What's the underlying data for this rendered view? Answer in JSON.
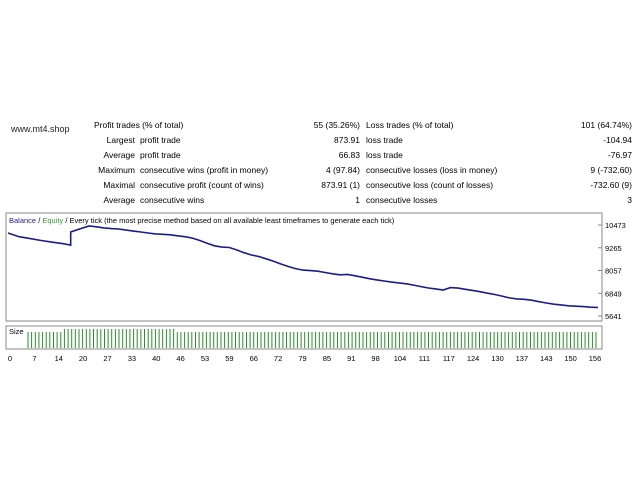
{
  "watermark": "www.mt4.shop",
  "stats": [
    {
      "l1": "",
      "l2": "Profit trades (% of total)",
      "v1": "55 (35.26%)",
      "l3": "Loss trades (% of total)",
      "v2": "101 (64.74%)"
    },
    {
      "l1": "Largest",
      "l2": "profit trade",
      "v1": "873.91",
      "l3": "loss trade",
      "v2": "-104.94"
    },
    {
      "l1": "Average",
      "l2": "profit trade",
      "v1": "66.83",
      "l3": "loss trade",
      "v2": "-76.97"
    },
    {
      "l1": "Maximum",
      "l2": "consecutive wins (profit in money)",
      "v1": "4 (97.84)",
      "l3": "consecutive losses (loss in money)",
      "v2": "9 (-732.60)"
    },
    {
      "l1": "Maximal",
      "l2": "consecutive profit (count of wins)",
      "v1": "873.91 (1)",
      "l3": "consecutive loss (count of losses)",
      "v2": "-732.60 (9)"
    },
    {
      "l1": "Average",
      "l2": "consecutive wins",
      "v1": "1",
      "l3": "consecutive losses",
      "v2": "3"
    }
  ],
  "chart_data": {
    "type": "line",
    "legend": {
      "balance": "Balance",
      "sep": " / ",
      "equity": "Equity",
      "rest": " / Every tick (the most precise method based on all available least timeframes to generate each tick)"
    },
    "size_label": "Size",
    "colors": {
      "balance": "#1c1c8c",
      "equity": "#3a9a3a",
      "size": "#2e8b2e"
    },
    "ylim": [
      5641,
      10473
    ],
    "yticks": [
      "10473",
      "9265",
      "8057",
      "6849",
      "5641"
    ],
    "xlim": [
      0,
      160
    ],
    "xticks": [
      "0",
      "7",
      "14",
      "20",
      "27",
      "33",
      "40",
      "46",
      "53",
      "59",
      "66",
      "72",
      "79",
      "85",
      "91",
      "98",
      "104",
      "111",
      "117",
      "124",
      "130",
      "137",
      "143",
      "150",
      "156"
    ],
    "series": [
      {
        "values_xy": [
          [
            0,
            10050
          ],
          [
            3,
            9850
          ],
          [
            6,
            9750
          ],
          [
            9,
            9650
          ],
          [
            12,
            9560
          ],
          [
            15,
            9480
          ],
          [
            17,
            9400
          ],
          [
            17,
            10100
          ],
          [
            20,
            10300
          ],
          [
            22,
            10420
          ],
          [
            24,
            10380
          ],
          [
            26,
            10320
          ],
          [
            28,
            10280
          ],
          [
            30,
            10260
          ],
          [
            32,
            10200
          ],
          [
            34,
            10150
          ],
          [
            36,
            10100
          ],
          [
            38,
            10050
          ],
          [
            40,
            10000
          ],
          [
            42,
            9980
          ],
          [
            44,
            9950
          ],
          [
            46,
            9900
          ],
          [
            48,
            9850
          ],
          [
            50,
            9780
          ],
          [
            52,
            9650
          ],
          [
            54,
            9500
          ],
          [
            56,
            9370
          ],
          [
            58,
            9300
          ],
          [
            60,
            9280
          ],
          [
            62,
            9150
          ],
          [
            64,
            9000
          ],
          [
            66,
            8880
          ],
          [
            68,
            8800
          ],
          [
            70,
            8680
          ],
          [
            72,
            8550
          ],
          [
            74,
            8400
          ],
          [
            76,
            8270
          ],
          [
            78,
            8160
          ],
          [
            80,
            8080
          ],
          [
            82,
            8050
          ],
          [
            84,
            8020
          ],
          [
            86,
            7950
          ],
          [
            88,
            7880
          ],
          [
            90,
            7830
          ],
          [
            92,
            7850
          ],
          [
            94,
            7780
          ],
          [
            96,
            7700
          ],
          [
            98,
            7620
          ],
          [
            100,
            7560
          ],
          [
            102,
            7500
          ],
          [
            104,
            7440
          ],
          [
            106,
            7400
          ],
          [
            108,
            7350
          ],
          [
            110,
            7280
          ],
          [
            112,
            7200
          ],
          [
            114,
            7130
          ],
          [
            116,
            7080
          ],
          [
            118,
            7020
          ],
          [
            120,
            7150
          ],
          [
            122,
            7120
          ],
          [
            124,
            7060
          ],
          [
            126,
            7000
          ],
          [
            128,
            6930
          ],
          [
            130,
            6850
          ],
          [
            132,
            6780
          ],
          [
            134,
            6700
          ],
          [
            136,
            6600
          ],
          [
            138,
            6550
          ],
          [
            140,
            6530
          ],
          [
            142,
            6480
          ],
          [
            144,
            6400
          ],
          [
            146,
            6330
          ],
          [
            148,
            6270
          ],
          [
            150,
            6230
          ],
          [
            152,
            6180
          ],
          [
            154,
            6160
          ],
          [
            156,
            6140
          ],
          [
            158,
            6110
          ],
          [
            160,
            6090
          ]
        ]
      }
    ]
  }
}
